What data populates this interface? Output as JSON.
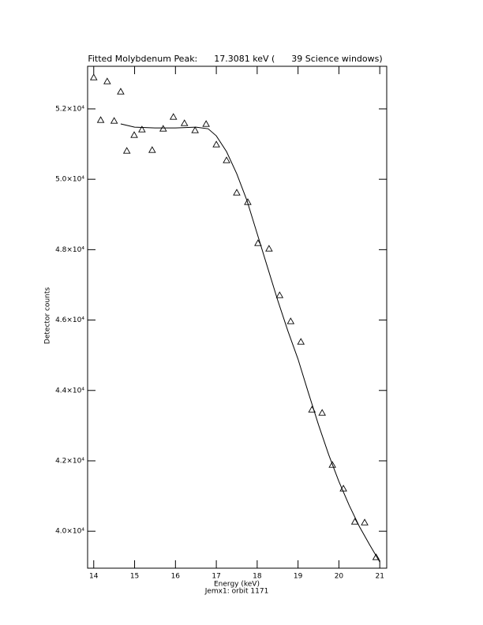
{
  "chart_data": {
    "type": "scatter",
    "title": "Fitted Molybdenum Peak:      17.3081 keV (      39 Science windows)",
    "x_label": "Energy (keV)",
    "subtitle": "Jemx1: orbit 1171",
    "y_label": "Detector counts",
    "xlim": [
      13.85,
      21.17
    ],
    "ylim": [
      38950,
      53210
    ],
    "xticks": [
      14,
      15,
      16,
      17,
      18,
      19,
      20,
      21
    ],
    "yticks": [
      {
        "value": 40000,
        "label": "4.0×10⁴"
      },
      {
        "value": 42000,
        "label": "4.2×10⁴"
      },
      {
        "value": 44000,
        "label": "4.4×10⁴"
      },
      {
        "value": 46000,
        "label": "4.6×10⁴"
      },
      {
        "value": 48000,
        "label": "4.8×10⁴"
      },
      {
        "value": 50000,
        "label": "5.0×10⁴"
      },
      {
        "value": 52000,
        "label": "5.2×10⁴"
      }
    ],
    "series": [
      {
        "mode": "markers",
        "marker": "triangle",
        "color": "#000000",
        "x": [
          14.0,
          14.17,
          14.33,
          14.5,
          14.66,
          14.81,
          14.99,
          15.18,
          15.43,
          15.7,
          15.95,
          16.22,
          16.48,
          16.75,
          17.0,
          17.25,
          17.5,
          17.77,
          18.02,
          18.29,
          18.55,
          18.82,
          19.07,
          19.34,
          19.59,
          19.84,
          20.11,
          20.39,
          20.63,
          20.91
        ],
        "values": [
          52892,
          51682,
          52780,
          51659,
          52489,
          50807,
          51256,
          51413,
          50830,
          51435,
          51771,
          51592,
          51390,
          51570,
          50987,
          50538,
          49619,
          49350,
          48184,
          48027,
          46704,
          45964,
          45381,
          43453,
          43363,
          41883,
          41211,
          40269,
          40247,
          39260
        ]
      },
      {
        "mode": "line",
        "color": "#000000",
        "x": [
          14.66,
          15.0,
          15.5,
          16.0,
          16.5,
          16.8,
          17.0,
          17.25,
          17.5,
          17.75,
          18.0,
          18.25,
          18.5,
          18.75,
          19.0,
          19.25,
          19.5,
          19.75,
          20.0,
          20.25,
          20.5,
          20.75,
          21.0
        ],
        "values": [
          51574,
          51480,
          51457,
          51457,
          51480,
          51435,
          51233,
          50785,
          50157,
          49395,
          48453,
          47511,
          46570,
          45695,
          44888,
          43946,
          43027,
          42175,
          41413,
          40740,
          40135,
          39619,
          39126
        ]
      }
    ]
  }
}
